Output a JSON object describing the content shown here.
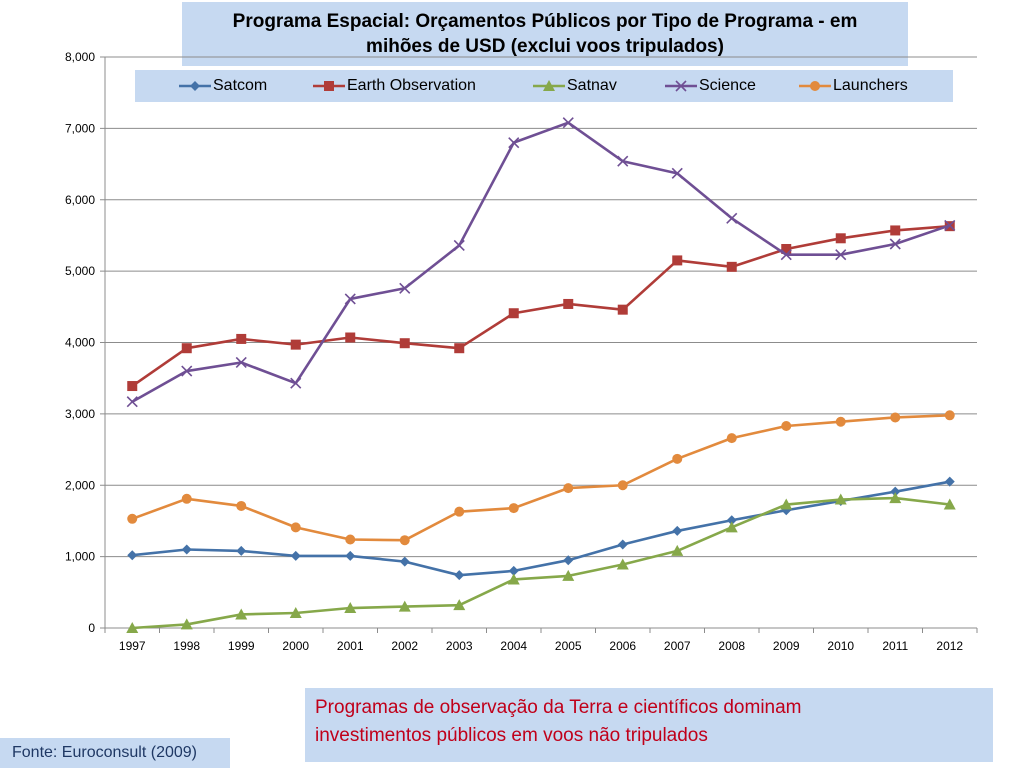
{
  "title": {
    "line1": "Programa Espacial: Orçamentos Públicos por Tipo de Programa - em",
    "line2": "mihões de USD  (exclui voos tripulados)"
  },
  "note": {
    "line1": "Programas de observação da Terra e científicos dominam",
    "line2": "investimentos públicos em voos não tripulados"
  },
  "source": "Fonte: Euroconsult (2009)",
  "chart_data": {
    "type": "line",
    "title": "Programa Espacial: Orçamentos Públicos por Tipo de Programa - em mihões de USD  (exclui voos tripulados)",
    "xlabel": "",
    "ylabel": "",
    "ylim": [
      0,
      8000
    ],
    "yticks": [
      "0",
      "1,000",
      "2,000",
      "3,000",
      "4,000",
      "5,000",
      "6,000",
      "7,000",
      "8,000"
    ],
    "grid": "horizontal",
    "legend_position": "top",
    "x": [
      "1997",
      "1998",
      "1999",
      "2000",
      "2001",
      "2002",
      "2003",
      "2004",
      "2005",
      "2006",
      "2007",
      "2008",
      "2009",
      "2010",
      "2011",
      "2012"
    ],
    "series": [
      {
        "name": "Satcom",
        "color": "#4472a8",
        "marker": "diamond",
        "values": [
          1020,
          1100,
          1080,
          1010,
          1010,
          930,
          740,
          800,
          950,
          1170,
          1360,
          1510,
          1650,
          1780,
          1910,
          2050
        ]
      },
      {
        "name": "Earth Observation",
        "color": "#b03c38",
        "marker": "square",
        "values": [
          3390,
          3920,
          4050,
          3970,
          4070,
          3990,
          3920,
          4410,
          4540,
          4460,
          5150,
          5060,
          5310,
          5460,
          5570,
          5630
        ]
      },
      {
        "name": "Satnav",
        "color": "#86a84a",
        "marker": "triangle",
        "values": [
          0,
          50,
          190,
          210,
          280,
          300,
          320,
          680,
          730,
          890,
          1080,
          1410,
          1730,
          1800,
          1820,
          1730
        ]
      },
      {
        "name": "Science",
        "color": "#6f4f94",
        "marker": "x",
        "values": [
          3170,
          3600,
          3720,
          3430,
          4610,
          4760,
          5360,
          6800,
          7080,
          6540,
          6370,
          5740,
          5230,
          5230,
          5380,
          5640
        ]
      },
      {
        "name": "Launchers",
        "color": "#e28a3d",
        "marker": "circle",
        "values": [
          1530,
          1810,
          1710,
          1410,
          1240,
          1230,
          1630,
          1680,
          1960,
          2000,
          2370,
          2660,
          2830,
          2890,
          2950,
          2980
        ]
      }
    ]
  }
}
